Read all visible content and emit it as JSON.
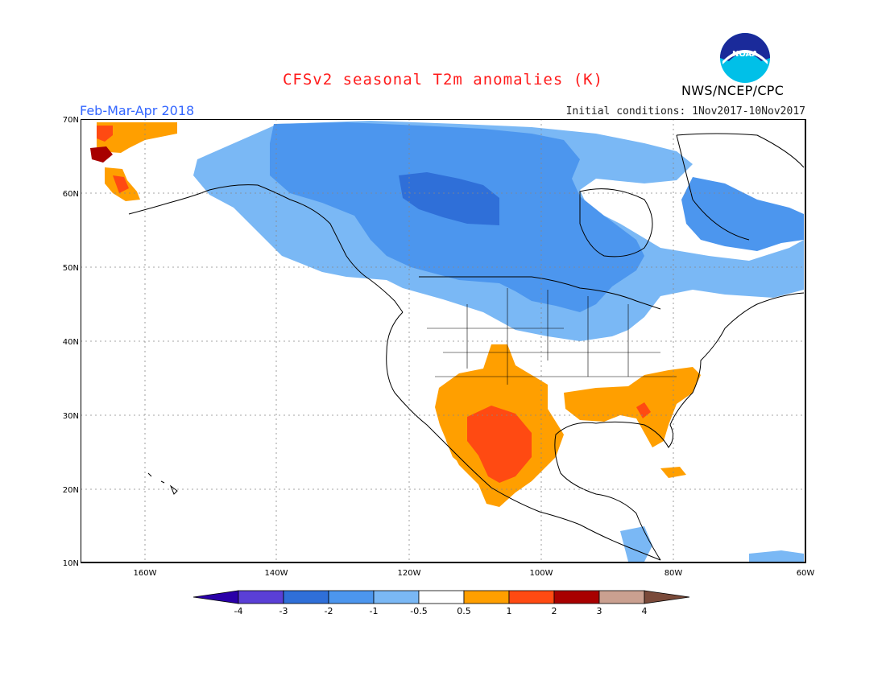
{
  "title": "CFSv2 seasonal T2m anomalies (K)",
  "season_label": "Feb-Mar-Apr 2018",
  "initial_conditions": "Initial conditions: 1Nov2017-10Nov2017",
  "agency": "NWS/NCEP/CPC",
  "logo": {
    "text": "NOAA",
    "icon": "noaa-logo-icon"
  },
  "map": {
    "projection": "lat-lon",
    "lon_range": [
      -173,
      -60
    ],
    "lat_range": [
      10,
      70
    ],
    "lat_ticks": [
      "70N",
      "60N",
      "50N",
      "40N",
      "30N",
      "20N",
      "10N"
    ],
    "lon_ticks": [
      "160W",
      "140W",
      "120W",
      "100W",
      "80W",
      "60W"
    ],
    "grid": "dotted"
  },
  "colorbar": {
    "labels": [
      "-4",
      "-3",
      "-2",
      "-1",
      "-0.5",
      "0.5",
      "1",
      "2",
      "3",
      "4"
    ],
    "colors": [
      "#2a00a8",
      "#5a3fd6",
      "#2f6fd8",
      "#4c96ee",
      "#7ab8f5",
      "#ffffff",
      "#ff9f00",
      "#ff4a12",
      "#a80000",
      "#caa090",
      "#7a4a3a"
    ]
  }
}
